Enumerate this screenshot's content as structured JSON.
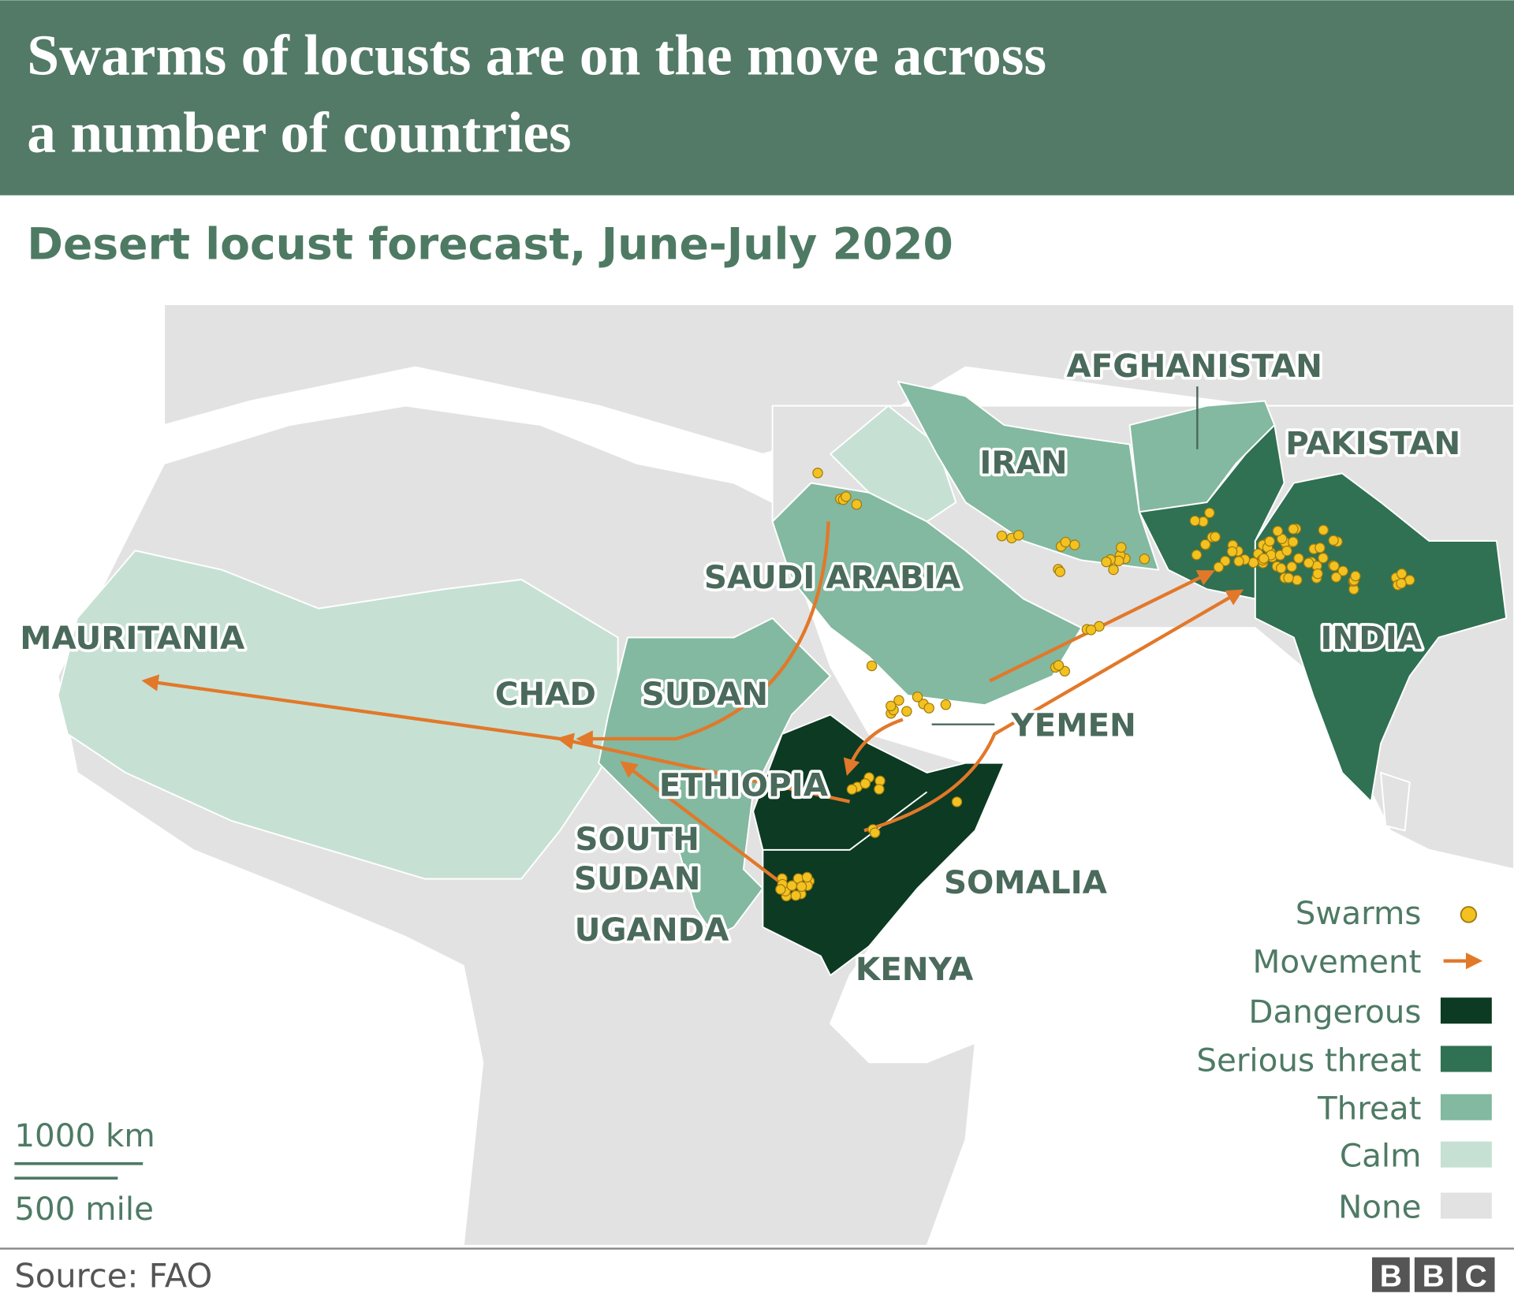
{
  "header": {
    "title_lines": [
      "Swarms of locusts are on the move across",
      "a number of countries"
    ]
  },
  "subtitle": "Desert locust forecast, June-July 2020",
  "map": {
    "labels": [
      {
        "lines": [
          "AFGHANISTAN"
        ]
      },
      {
        "lines": [
          "IRAN"
        ]
      },
      {
        "lines": [
          "PAKISTAN"
        ]
      },
      {
        "lines": [
          "SAUDI ARABIA"
        ]
      },
      {
        "lines": [
          "MAURITANIA"
        ]
      },
      {
        "lines": [
          "CHAD"
        ]
      },
      {
        "lines": [
          "SUDAN"
        ]
      },
      {
        "lines": [
          "YEMEN"
        ]
      },
      {
        "lines": [
          "INDIA"
        ]
      },
      {
        "lines": [
          "ETHIOPIA"
        ]
      },
      {
        "lines": [
          "SOUTH",
          "SUDAN"
        ]
      },
      {
        "lines": [
          "SOMALIA"
        ]
      },
      {
        "lines": [
          "UGANDA"
        ]
      },
      {
        "lines": [
          "KENYA"
        ]
      }
    ]
  },
  "legend": [
    {
      "label": "Swarms",
      "color": "#f3c220"
    },
    {
      "label": "Movement",
      "color": "#e2782a"
    },
    {
      "label": "Dangerous",
      "color": "#0c3a22"
    },
    {
      "label": "Serious threat",
      "color": "#2f7152"
    },
    {
      "label": "Threat",
      "color": "#82b9a0"
    },
    {
      "label": "Calm",
      "color": "#c6e1d3"
    },
    {
      "label": "None",
      "color": "#e2e2e2"
    }
  ],
  "scale": {
    "km": "1000 km",
    "mile": "500 mile"
  },
  "footer": {
    "source": "Source: FAO",
    "logo": [
      "B",
      "B",
      "C"
    ]
  }
}
